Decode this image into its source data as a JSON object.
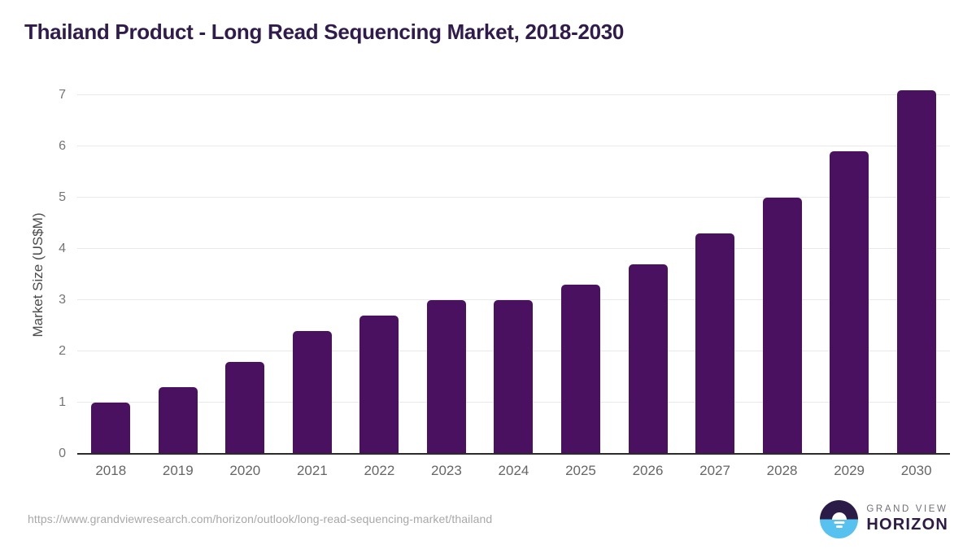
{
  "chart_data": {
    "type": "bar",
    "title": "Thailand Product - Long Read Sequencing Market, 2018-2030",
    "categories": [
      "2018",
      "2019",
      "2020",
      "2021",
      "2022",
      "2023",
      "2024",
      "2025",
      "2026",
      "2027",
      "2028",
      "2029",
      "2030"
    ],
    "values": [
      1.0,
      1.3,
      1.8,
      2.4,
      2.7,
      3.0,
      3.0,
      3.3,
      3.7,
      4.3,
      5.0,
      5.9,
      7.1
    ],
    "xlabel": "",
    "ylabel": "Market Size (US$M)",
    "ylim": [
      0,
      7
    ],
    "yticks": [
      0,
      1,
      2,
      3,
      4,
      5,
      6,
      7
    ],
    "grid": "horizontal-only",
    "legend_position": "none",
    "bar_color": "#49115f"
  },
  "colors": {
    "title_text": "#301b4d",
    "bar": "#49115f",
    "gridline": "#e9e9e9",
    "axis_line": "#2b2b2b",
    "tick_text": "#757575",
    "x_label_text": "#666666",
    "axis_label_text": "#4a4a4a",
    "url_text": "#a8a8a8",
    "logo_purple": "#2b1b47",
    "logo_blue": "#57c2ef"
  },
  "footer": {
    "source_url": "https://www.grandviewresearch.com/horizon/outlook/long-read-sequencing-market/thailand",
    "logo": {
      "icon": "horizon-sun-icon",
      "brand_top": "GRAND VIEW",
      "brand_bottom": "HORIZON"
    }
  }
}
